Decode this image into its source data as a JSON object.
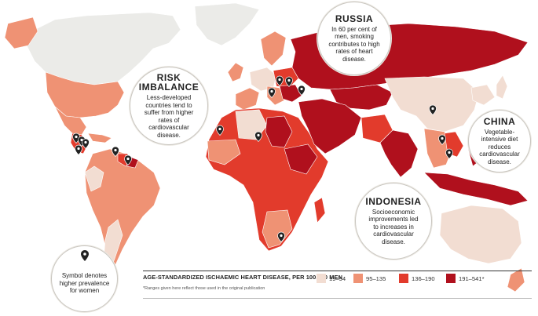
{
  "callouts": {
    "russia": {
      "title": "RUSSIA",
      "text": "In 60 per cent of men, smoking contributes to high rates of heart disease."
    },
    "risk": {
      "title": "RISK IMBALANCE",
      "text": "Less-developed countries tend to suffer from higher rates of cardiovascular disease."
    },
    "china": {
      "title": "CHINA",
      "text": "Vegetable-intensive diet reduces cardiovascular disease."
    },
    "indonesia": {
      "title": "INDONESIA",
      "text": "Socioeconomic improvements led to increases in cardiovascular disease."
    },
    "symbol": {
      "text": "Symbol denotes higher prevalence for women"
    }
  },
  "legend": {
    "title": "AGE-STANDARDIZED ISCHAEMIC HEART DISEASE, PER 100,000 MEN",
    "note": "*Ranges given here reflect those used in the original publication",
    "items": [
      {
        "label": "19–94",
        "color": "#f2ddd2"
      },
      {
        "label": "95–135",
        "color": "#ef9274"
      },
      {
        "label": "136–190",
        "color": "#e23b2c"
      },
      {
        "label": "191–541*",
        "color": "#b0101d"
      }
    ]
  },
  "colors": {
    "ocean": "#ffffff",
    "no_data": "#ebebe8",
    "marker": "#222222"
  },
  "icons": {
    "marker": "map-pin-icon"
  }
}
